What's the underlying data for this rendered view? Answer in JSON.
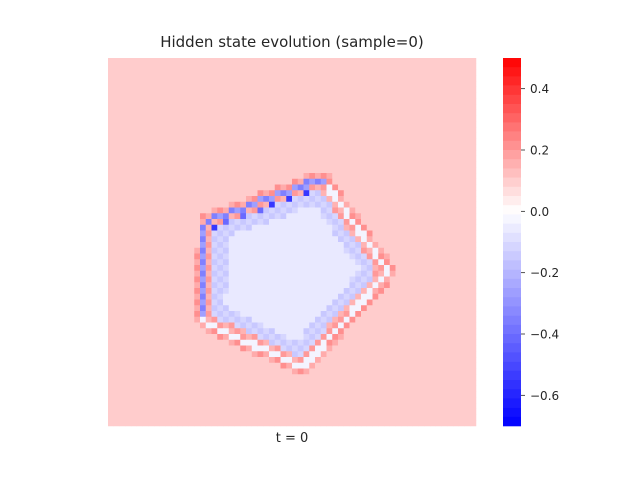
{
  "chart_data": {
    "type": "heatmap",
    "title": "Hidden state evolution (sample=0)",
    "xlabel": "t = 0",
    "ylabel": "",
    "colormap": "bwr",
    "color_range": [
      -0.7,
      0.5
    ],
    "colorbar_ticks": [
      {
        "value": 0.4,
        "label": "0.4"
      },
      {
        "value": 0.2,
        "label": "0.2"
      },
      {
        "value": 0.0,
        "label": "0.0"
      },
      {
        "value": -0.2,
        "label": "−0.2"
      },
      {
        "value": -0.4,
        "label": "−0.4"
      },
      {
        "value": -0.6,
        "label": "−0.6"
      }
    ],
    "grid_size": [
      64,
      64
    ],
    "background_value": 0.1,
    "interior_value": -0.06,
    "edge_band_values": [
      -0.15,
      0.2,
      -0.03,
      0.22,
      0.06
    ],
    "dark_edge_value": -0.55,
    "shape_vertices_grid": [
      [
        18.2,
        29.3
      ],
      [
        36.8,
        22.4
      ],
      [
        47.2,
        37.1
      ],
      [
        33.6,
        52.4
      ],
      [
        17.8,
        45.1
      ]
    ]
  }
}
